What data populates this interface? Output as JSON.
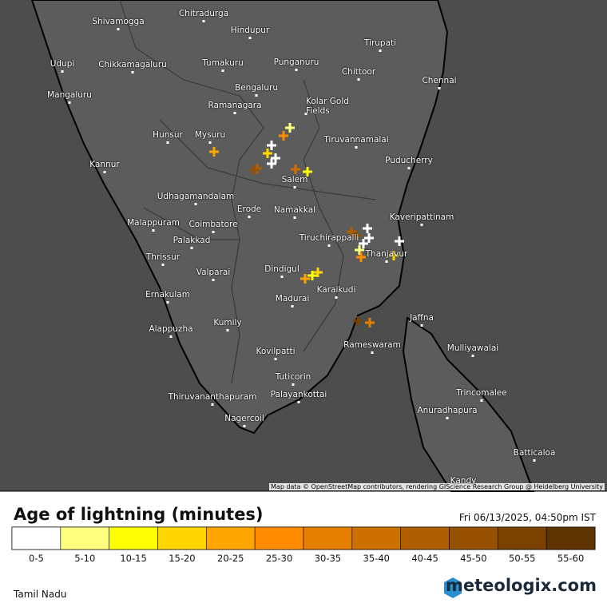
{
  "map": {
    "cities": [
      "Shivamogga",
      "Chitradurga",
      "Hindupur",
      "Tirupati",
      "Udupi",
      "Chikkamagaluru",
      "Tumakuru",
      "Punganuru",
      "Chittoor",
      "Chennai",
      "Mangaluru",
      "Bengaluru",
      "Ramanagara",
      "Kolar Gold Fields",
      "Hunsur",
      "Mysuru",
      "Tiruvannamalai",
      "Kannur",
      "Puducherry",
      "Salem",
      "Udhagamandalam",
      "Erode",
      "Namakkal",
      "Kaveripattinam",
      "Malappuram",
      "Coimbatore",
      "Tiruchirappalli",
      "Palakkad",
      "Thrissur",
      "Thanjavur",
      "Valparai",
      "Dindigul",
      "Madurai",
      "Karaikudi",
      "Ernakulam",
      "Jaffna",
      "Kumily",
      "Alappuzha",
      "Rameswaram",
      "Mulliyawalai",
      "Kovilpatti",
      "Tuticorin",
      "Palayankottai",
      "Trincomalee",
      "Thiruvananthapuram",
      "Anuradhapura",
      "Nagercoil",
      "Batticaloa",
      "Kandy"
    ],
    "attribution": "Map data © OpenStreetMap contributors, rendering GIScience Research Group @ Heidelberg University"
  },
  "legend": {
    "title": "Age of lightning (minutes)",
    "timestamp": "Fri 06/13/2025, 04:50pm IST",
    "bins": [
      {
        "label": "0-5",
        "color": "#ffffff"
      },
      {
        "label": "5-10",
        "color": "#ffff80"
      },
      {
        "label": "10-15",
        "color": "#ffff00"
      },
      {
        "label": "15-20",
        "color": "#ffd700"
      },
      {
        "label": "20-25",
        "color": "#ffa500"
      },
      {
        "label": "25-30",
        "color": "#ff8c00"
      },
      {
        "label": "30-35",
        "color": "#e67e00"
      },
      {
        "label": "35-40",
        "color": "#cc7000"
      },
      {
        "label": "40-45",
        "color": "#b05f00"
      },
      {
        "label": "45-50",
        "color": "#955000"
      },
      {
        "label": "50-55",
        "color": "#7a4200"
      },
      {
        "label": "55-60",
        "color": "#5e3300"
      }
    ]
  },
  "footer": {
    "region": "Tamil Nadu",
    "brand": "meteologix.com"
  }
}
